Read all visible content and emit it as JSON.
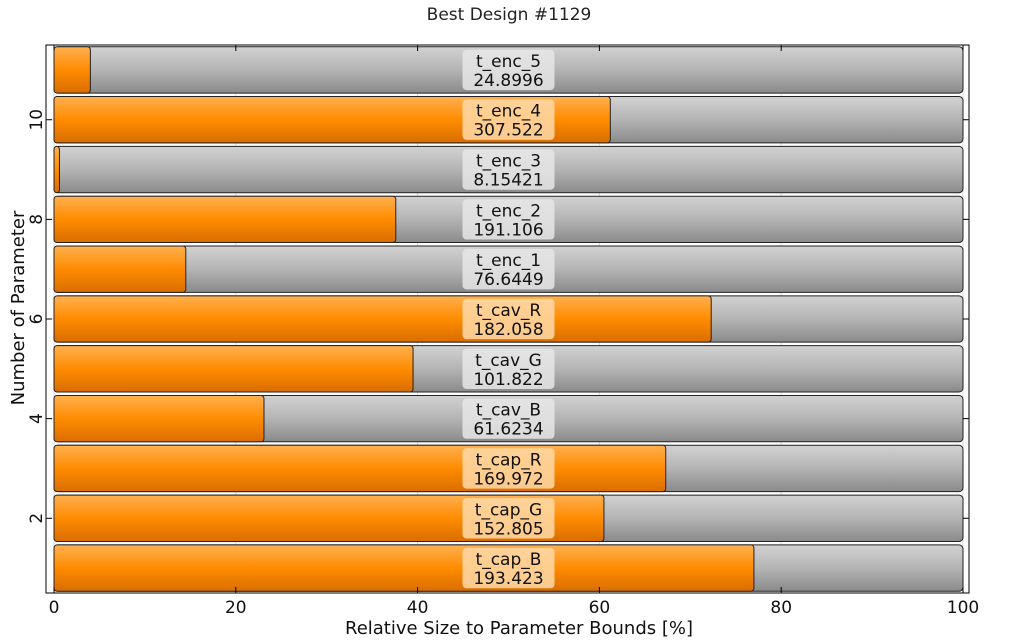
{
  "chart_data": {
    "type": "bar",
    "orientation": "horizontal",
    "title": "Best Design #1129",
    "xlabel": "Relative Size to Parameter Bounds [%]",
    "ylabel": "Number of Parameter",
    "xlim": [
      0,
      100
    ],
    "ylim": [
      0.5,
      11.5
    ],
    "xticks": [
      0,
      20,
      40,
      60,
      80,
      100
    ],
    "yticks": [
      2,
      4,
      6,
      8,
      10
    ],
    "grid": true,
    "bars": [
      {
        "index": 1,
        "name": "t_cap_B",
        "value_label": "193.423",
        "percent": 77.0
      },
      {
        "index": 2,
        "name": "t_cap_G",
        "value_label": "152.805",
        "percent": 60.5
      },
      {
        "index": 3,
        "name": "t_cap_R",
        "value_label": "169.972",
        "percent": 67.3
      },
      {
        "index": 4,
        "name": "t_cav_B",
        "value_label": "61.6234",
        "percent": 23.1
      },
      {
        "index": 5,
        "name": "t_cav_G",
        "value_label": "101.822",
        "percent": 39.5
      },
      {
        "index": 6,
        "name": "t_cav_R",
        "value_label": "182.058",
        "percent": 72.3
      },
      {
        "index": 7,
        "name": "t_enc_1",
        "value_label": "76.6449",
        "percent": 14.5
      },
      {
        "index": 8,
        "name": "t_enc_2",
        "value_label": "191.106",
        "percent": 37.6
      },
      {
        "index": 9,
        "name": "t_enc_3",
        "value_label": "8.15421",
        "percent": 0.6
      },
      {
        "index": 10,
        "name": "t_enc_4",
        "value_label": "307.522",
        "percent": 61.2
      },
      {
        "index": 11,
        "name": "t_enc_5",
        "value_label": "24.8996",
        "percent": 4.0
      }
    ],
    "colors": {
      "fill": "#ff8c00",
      "background_bar": "#b4b4b4",
      "label_box_over_fill": "#ffd9a8",
      "label_box_over_background": "#e6e6e6"
    }
  }
}
